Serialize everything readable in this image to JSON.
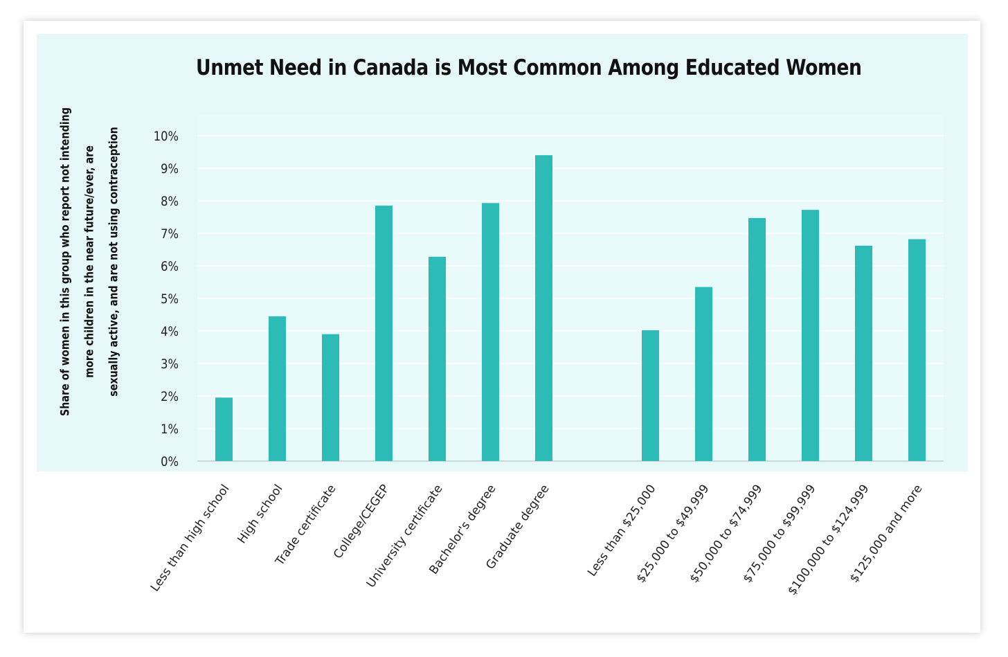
{
  "chart_data": {
    "type": "bar",
    "title": "Unmet Need in Canada is Most Common Among Educated Women",
    "ylabel_lines": [
      "Share of women in this group who report not intending",
      "more children in the near future/ever, are",
      "sexually active, and are not using contraception"
    ],
    "xlabel": "",
    "ylim": [
      0,
      10
    ],
    "yticks": [
      "0%",
      "1%",
      "2%",
      "3%",
      "4%",
      "5%",
      "6%",
      "7%",
      "8%",
      "9%",
      "10%"
    ],
    "grid": true,
    "color": "#2dbbb8",
    "categories": [
      "Less than high school",
      "High school",
      "Trade certificate",
      "College/CEGEP",
      "University certificate",
      "Bachelor's degree",
      "Graduate degree",
      "",
      "Less than $25,000",
      "$25,000 to $49,999",
      "$50,000 to $74,999",
      "$75,000 to $99,999",
      "$100,000 to $124,999",
      "$125,000 and more"
    ],
    "values": [
      1.95,
      4.45,
      3.9,
      7.85,
      6.28,
      7.93,
      9.4,
      null,
      4.02,
      5.35,
      7.47,
      7.72,
      6.62,
      6.82
    ]
  }
}
